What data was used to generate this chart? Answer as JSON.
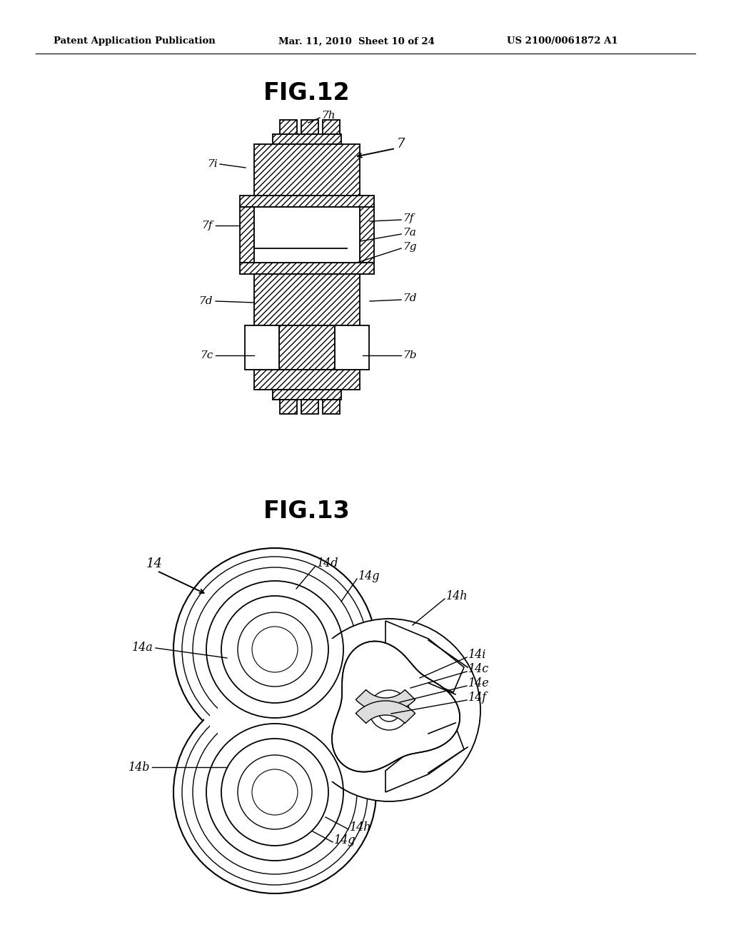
{
  "bg_color": "#ffffff",
  "header_left": "Patent Application Publication",
  "header_mid": "Mar. 11, 2010  Sheet 10 of 24",
  "header_right": "US 2100/0061872 A1",
  "line_color": "#000000",
  "fig12_title": "FIG.12",
  "fig13_title": "FIG.13"
}
